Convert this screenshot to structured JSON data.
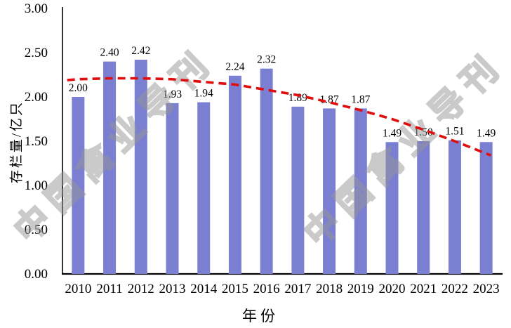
{
  "chart_data": {
    "type": "bar",
    "title": "",
    "categories": [
      "2010",
      "2011",
      "2012",
      "2013",
      "2014",
      "2015",
      "2016",
      "2017",
      "2018",
      "2019",
      "2020",
      "2021",
      "2022",
      "2023"
    ],
    "values": [
      2.0,
      2.4,
      2.42,
      1.93,
      1.94,
      2.24,
      2.32,
      1.89,
      1.87,
      1.87,
      1.49,
      1.5,
      1.51,
      1.49
    ],
    "data_labels": [
      "2.00",
      "2.40",
      "2.42",
      "1.93",
      "1.94",
      "2.24",
      "2.32",
      "1.89",
      "1.87",
      "1.87",
      "1.49",
      "1.50",
      "1.51",
      "1.49"
    ],
    "xlabel": "年份",
    "ylabel": "存栏量/亿只",
    "ylim": [
      0,
      3.0
    ],
    "ytick_step": 0.5,
    "yticks": [
      "0.00",
      "0.50",
      "1.00",
      "1.50",
      "2.00",
      "2.50",
      "3.00"
    ],
    "grid": false,
    "legend": "none",
    "bar_color": "#7a7fd1",
    "axis_color": "#000000",
    "trend_line": {
      "style": "dashed",
      "color": "#e00d0d",
      "t": [
        -0.35,
        0,
        1,
        2,
        3,
        4,
        5,
        6,
        7,
        8,
        9,
        10,
        11,
        12,
        13,
        13.15
      ],
      "values": [
        2.19,
        2.2,
        2.21,
        2.21,
        2.2,
        2.17,
        2.14,
        2.08,
        2.02,
        1.94,
        1.85,
        1.75,
        1.63,
        1.5,
        1.36,
        1.34
      ]
    }
  },
  "watermark": {
    "text": "中国禽业导刊",
    "color": "#c9c9c9"
  }
}
